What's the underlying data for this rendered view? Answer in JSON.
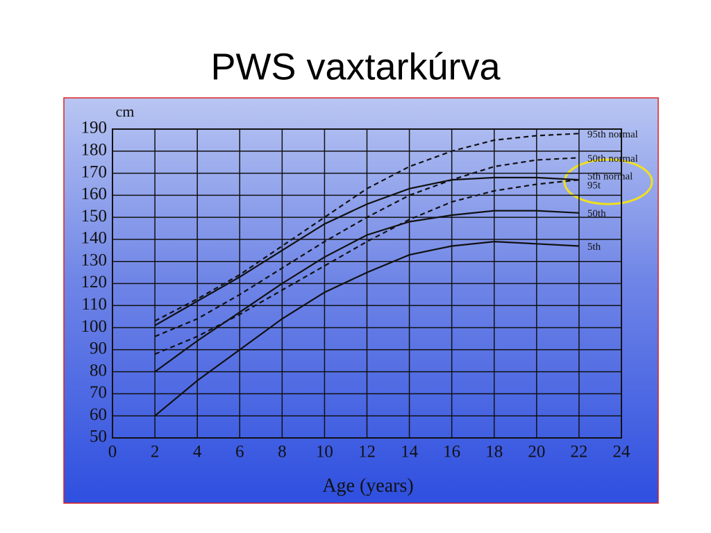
{
  "chart_data": {
    "type": "line",
    "title": "PWS vaxtarkúrva",
    "y_label": "cm",
    "x_label": "Age (years)",
    "x": [
      2,
      4,
      6,
      8,
      10,
      12,
      14,
      16,
      18,
      20,
      22
    ],
    "xlim": [
      0,
      24
    ],
    "xticks": [
      0,
      2,
      4,
      6,
      8,
      10,
      12,
      14,
      16,
      18,
      20,
      22,
      24
    ],
    "ylim": [
      50,
      190
    ],
    "yticks": [
      50,
      60,
      70,
      80,
      90,
      100,
      110,
      120,
      130,
      140,
      150,
      160,
      170,
      180,
      190
    ],
    "grid": true,
    "series": [
      {
        "name": "95th normal",
        "color": "#111111",
        "style": "dashed",
        "values": [
          103,
          113,
          124,
          137,
          150,
          163,
          173,
          180,
          185,
          187,
          188
        ]
      },
      {
        "name": "50th normal",
        "color": "#111111",
        "style": "dashed",
        "values": [
          96,
          104,
          115,
          127,
          139,
          150,
          160,
          167,
          173,
          176,
          177
        ]
      },
      {
        "name": "5th normal",
        "color": "#111111",
        "style": "dashed",
        "values": [
          88,
          96,
          106,
          117,
          128,
          139,
          149,
          157,
          162,
          165,
          167
        ]
      },
      {
        "name": "95t",
        "color": "#111111",
        "style": "solid",
        "values": [
          101,
          112,
          123,
          135,
          147,
          156,
          163,
          167,
          168,
          168,
          167
        ]
      },
      {
        "name": "50th",
        "color": "#111111",
        "style": "solid",
        "values": [
          80,
          94,
          107,
          120,
          132,
          142,
          148,
          151,
          153,
          153,
          152
        ]
      },
      {
        "name": "5th",
        "color": "#111111",
        "style": "solid",
        "values": [
          60,
          76,
          90,
          104,
          116,
          125,
          133,
          137,
          139,
          138,
          137
        ]
      }
    ]
  }
}
